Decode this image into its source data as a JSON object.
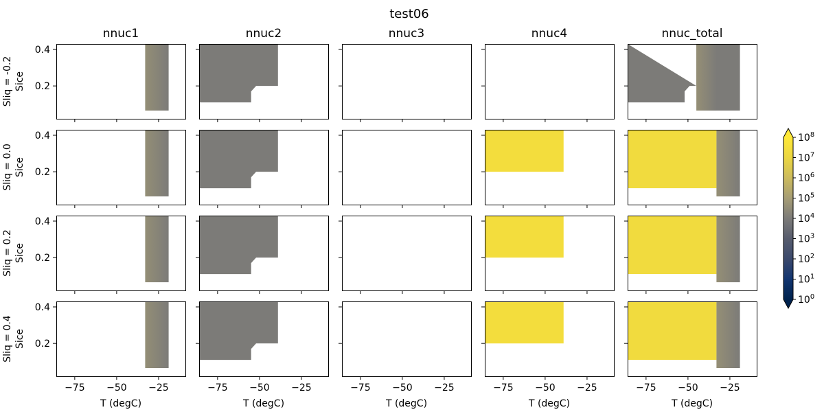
{
  "chart_data": {
    "type": "heatmap",
    "title": "test06",
    "column_titles": [
      "nnuc1",
      "nnuc2",
      "nnuc3",
      "nnuc4",
      "nnuc_total"
    ],
    "row_labels": [
      "Sliq = -0.2",
      "Sliq = 0.0",
      "Sliq = 0.2",
      "Sliq = 0.4"
    ],
    "ylabel": "Sice",
    "xlabel": "T (degC)",
    "xlim": [
      -86,
      -9
    ],
    "ylim": [
      0.02,
      0.43
    ],
    "xticks": [
      -75,
      -50,
      -25
    ],
    "yticks": [
      0.2,
      0.4
    ],
    "xtick_labels": [
      "−75",
      "−50",
      "−25"
    ],
    "ytick_labels": [
      "0.2",
      "0.4"
    ],
    "colorbar": {
      "scale": "log",
      "min": 1,
      "max": 100000000,
      "extend": "both",
      "colormap": "cividis",
      "tick_exponents": [
        0,
        1,
        2,
        3,
        4,
        5,
        6,
        7,
        8
      ],
      "tick_base": "10"
    },
    "panels": [
      [
        {
          "regions": [
            {
              "x": [
                -33,
                -19
              ],
              "y": [
                0.065,
                0.43
              ],
              "log_values": [
                4.55,
                4.0
              ]
            }
          ]
        },
        {
          "regions": [
            {
              "polygon": [
                [
                  -86,
                  0.43
                ],
                [
                  -39,
                  0.43
                ],
                [
                  -39,
                  0.2
                ],
                [
                  -52,
                  0.2
                ],
                [
                  -55,
                  0.17
                ],
                [
                  -55,
                  0.11
                ],
                [
                  -86,
                  0.11
                ]
              ],
              "log_value": 4.0
            }
          ]
        },
        {
          "regions": []
        },
        {
          "regions": []
        },
        {
          "regions": [
            {
              "polygon": [
                [
                  -86,
                  0.43
                ],
                [
                  -45,
                  0.43
                ],
                [
                  -45,
                  0.2
                ],
                [
                  -40,
                  0.2
                ],
                [
                  -37,
                  0.17
                ],
                [
                  -37,
                  0.065
                ],
                [
                  -19,
                  0.065
                ],
                [
                  -19,
                  0.43
                ],
                [
                  -86,
                  0.43
                ],
                [
                  -86,
                  0.11
                ],
                [
                  -52,
                  0.11
                ],
                [
                  -52,
                  0.17
                ],
                [
                  -49,
                  0.2
                ],
                [
                  -45,
                  0.2
                ]
              ],
              "log_value": 4.0
            },
            {
              "x": [
                -45,
                -33
              ],
              "y": [
                0.065,
                0.43
              ],
              "log_values": [
                4.6,
                4.0
              ]
            }
          ]
        }
      ],
      [
        {
          "regions": [
            {
              "x": [
                -33,
                -19
              ],
              "y": [
                0.065,
                0.43
              ],
              "log_values": [
                4.55,
                4.0
              ]
            }
          ]
        },
        {
          "regions": [
            {
              "polygon": [
                [
                  -86,
                  0.43
                ],
                [
                  -39,
                  0.43
                ],
                [
                  -39,
                  0.2
                ],
                [
                  -52,
                  0.2
                ],
                [
                  -55,
                  0.17
                ],
                [
                  -55,
                  0.11
                ],
                [
                  -86,
                  0.11
                ]
              ],
              "log_value": 4.0
            }
          ]
        },
        {
          "regions": []
        },
        {
          "regions": [
            {
              "x": [
                -86,
                -39
              ],
              "y": [
                0.2,
                0.43
              ],
              "log_value": 7.4
            }
          ]
        },
        {
          "regions": [
            {
              "x": [
                -86,
                -33
              ],
              "y": [
                0.11,
                0.43
              ],
              "log_value": 7.3
            },
            {
              "x": [
                -33,
                -19
              ],
              "y": [
                0.065,
                0.43
              ],
              "log_values": [
                4.6,
                4.0
              ]
            }
          ]
        }
      ],
      [
        {
          "regions": [
            {
              "x": [
                -33,
                -19
              ],
              "y": [
                0.065,
                0.43
              ],
              "log_values": [
                4.55,
                4.0
              ]
            }
          ]
        },
        {
          "regions": [
            {
              "polygon": [
                [
                  -86,
                  0.43
                ],
                [
                  -39,
                  0.43
                ],
                [
                  -39,
                  0.2
                ],
                [
                  -52,
                  0.2
                ],
                [
                  -55,
                  0.17
                ],
                [
                  -55,
                  0.11
                ],
                [
                  -86,
                  0.11
                ]
              ],
              "log_value": 4.0
            }
          ]
        },
        {
          "regions": []
        },
        {
          "regions": [
            {
              "x": [
                -86,
                -39
              ],
              "y": [
                0.2,
                0.43
              ],
              "log_value": 7.4
            }
          ]
        },
        {
          "regions": [
            {
              "x": [
                -86,
                -33
              ],
              "y": [
                0.11,
                0.43
              ],
              "log_value": 7.3
            },
            {
              "x": [
                -33,
                -19
              ],
              "y": [
                0.065,
                0.43
              ],
              "log_values": [
                4.6,
                4.0
              ]
            }
          ]
        }
      ],
      [
        {
          "regions": [
            {
              "x": [
                -33,
                -19
              ],
              "y": [
                0.065,
                0.43
              ],
              "log_values": [
                4.55,
                4.0
              ]
            }
          ]
        },
        {
          "regions": [
            {
              "polygon": [
                [
                  -86,
                  0.43
                ],
                [
                  -39,
                  0.43
                ],
                [
                  -39,
                  0.2
                ],
                [
                  -52,
                  0.2
                ],
                [
                  -55,
                  0.17
                ],
                [
                  -55,
                  0.11
                ],
                [
                  -86,
                  0.11
                ]
              ],
              "log_value": 4.0
            }
          ]
        },
        {
          "regions": []
        },
        {
          "regions": [
            {
              "x": [
                -86,
                -39
              ],
              "y": [
                0.2,
                0.43
              ],
              "log_value": 7.4
            }
          ]
        },
        {
          "regions": [
            {
              "x": [
                -86,
                -33
              ],
              "y": [
                0.11,
                0.43
              ],
              "log_value": 7.3
            },
            {
              "x": [
                -33,
                -19
              ],
              "y": [
                0.065,
                0.43
              ],
              "log_values": [
                4.6,
                4.0
              ]
            }
          ]
        }
      ]
    ]
  }
}
